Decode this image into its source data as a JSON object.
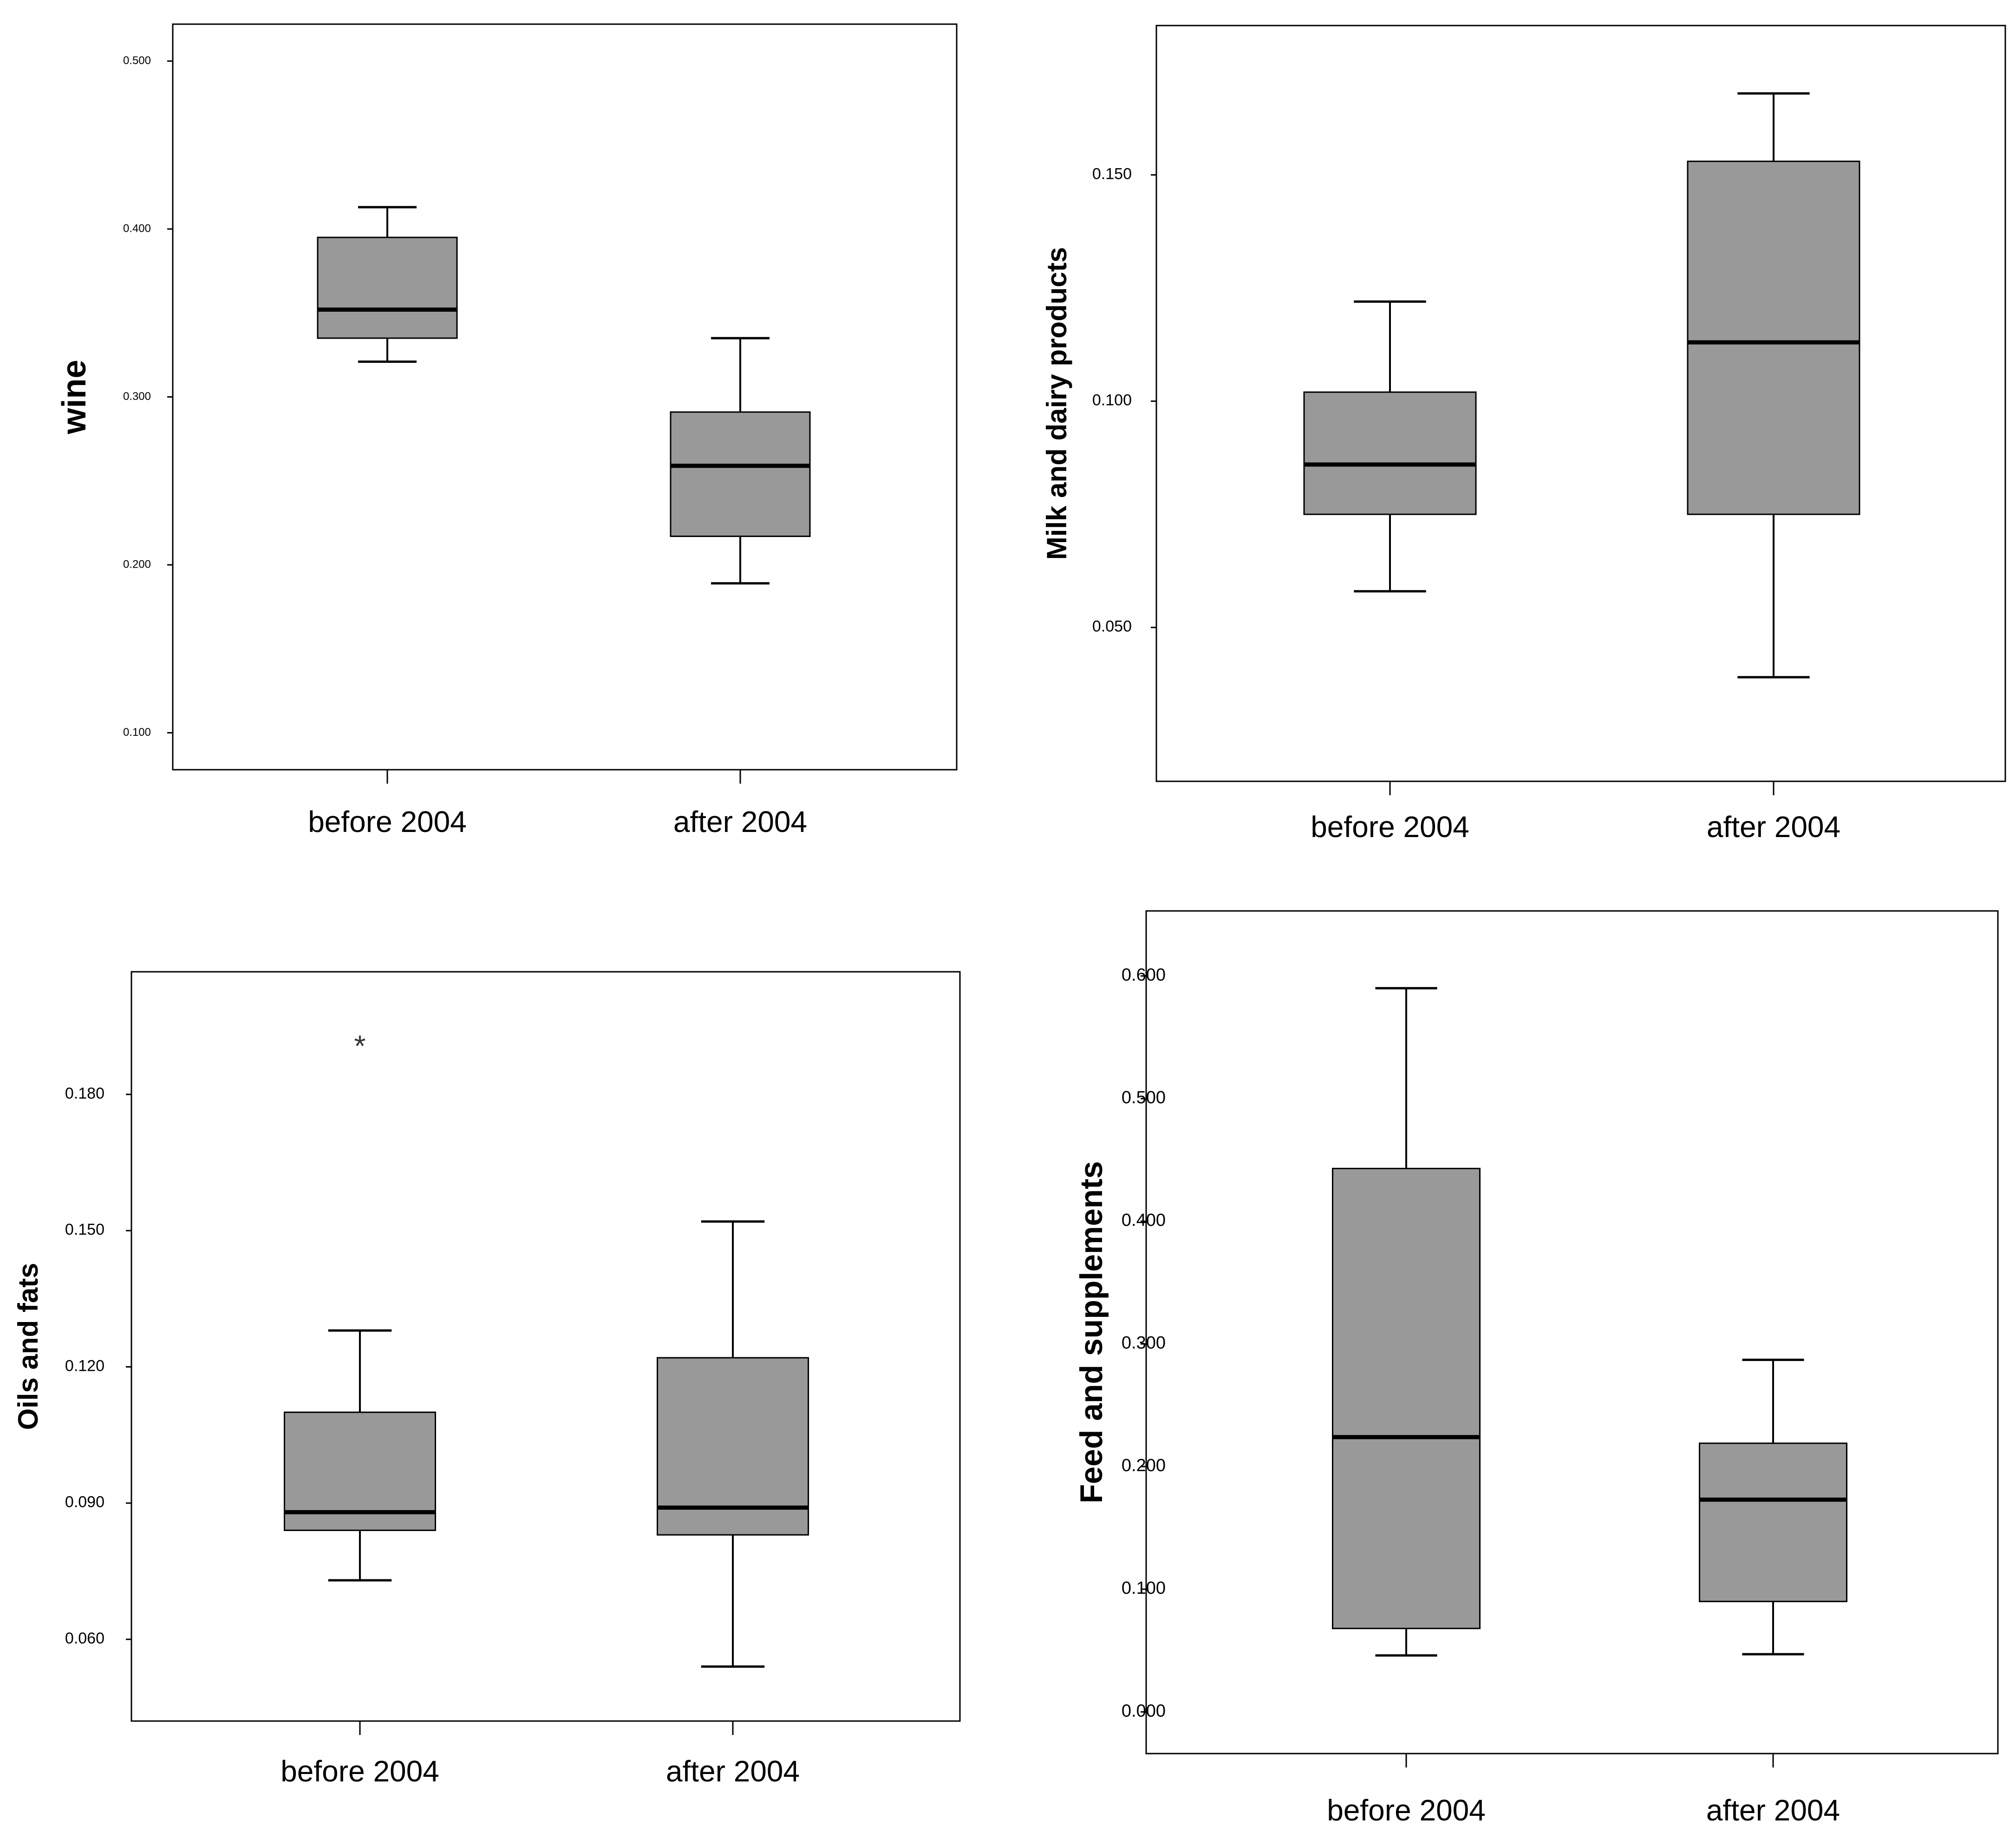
{
  "colors": {
    "box_fill": "#999999",
    "stroke": "#000000",
    "background": "#ffffff"
  },
  "chart_data": [
    {
      "type": "box",
      "ylabel": "wine",
      "categories": [
        "before 2004",
        "after 2004"
      ],
      "yticks": [
        "0.100",
        "0.200",
        "0.300",
        "0.400",
        "0.500"
      ],
      "ylim": [
        0.078,
        0.522
      ],
      "boxes": [
        {
          "min": 0.321,
          "q1": 0.335,
          "median": 0.352,
          "q3": 0.395,
          "max": 0.413,
          "outliers": []
        },
        {
          "min": 0.189,
          "q1": 0.217,
          "median": 0.259,
          "q3": 0.291,
          "max": 0.335,
          "outliers": []
        }
      ]
    },
    {
      "type": "box",
      "ylabel": "Milk and dairy products",
      "categories": [
        "before 2004",
        "after 2004"
      ],
      "yticks": [
        "0.050",
        "0.100",
        "0.150"
      ],
      "ylim": [
        0.016,
        0.183
      ],
      "boxes": [
        {
          "min": 0.058,
          "q1": 0.075,
          "median": 0.086,
          "q3": 0.102,
          "max": 0.122,
          "outliers": []
        },
        {
          "min": 0.039,
          "q1": 0.075,
          "median": 0.113,
          "q3": 0.153,
          "max": 0.168,
          "outliers": []
        }
      ]
    },
    {
      "type": "box",
      "ylabel": "Oils and fats",
      "categories": [
        "before 2004",
        "after 2004"
      ],
      "yticks": [
        "0.060",
        "0.090",
        "0.120",
        "0.150",
        "0.180"
      ],
      "ylim": [
        0.042,
        0.207
      ],
      "boxes": [
        {
          "min": 0.073,
          "q1": 0.084,
          "median": 0.088,
          "q3": 0.11,
          "max": 0.128,
          "outliers": [
            0.192
          ]
        },
        {
          "min": 0.054,
          "q1": 0.083,
          "median": 0.089,
          "q3": 0.122,
          "max": 0.152,
          "outliers": []
        }
      ]
    },
    {
      "type": "box",
      "ylabel": "Feed and supplements",
      "categories": [
        "before 2004",
        "after 2004"
      ],
      "yticks": [
        "0.000",
        "0.100",
        "0.200",
        "0.300",
        "0.400",
        "0.500",
        "0.600"
      ],
      "ylim": [
        -0.034,
        0.653
      ],
      "boxes": [
        {
          "min": 0.046,
          "q1": 0.068,
          "median": 0.224,
          "q3": 0.443,
          "max": 0.59,
          "outliers": []
        },
        {
          "min": 0.047,
          "q1": 0.09,
          "median": 0.173,
          "q3": 0.219,
          "max": 0.287,
          "outliers": []
        }
      ]
    }
  ]
}
